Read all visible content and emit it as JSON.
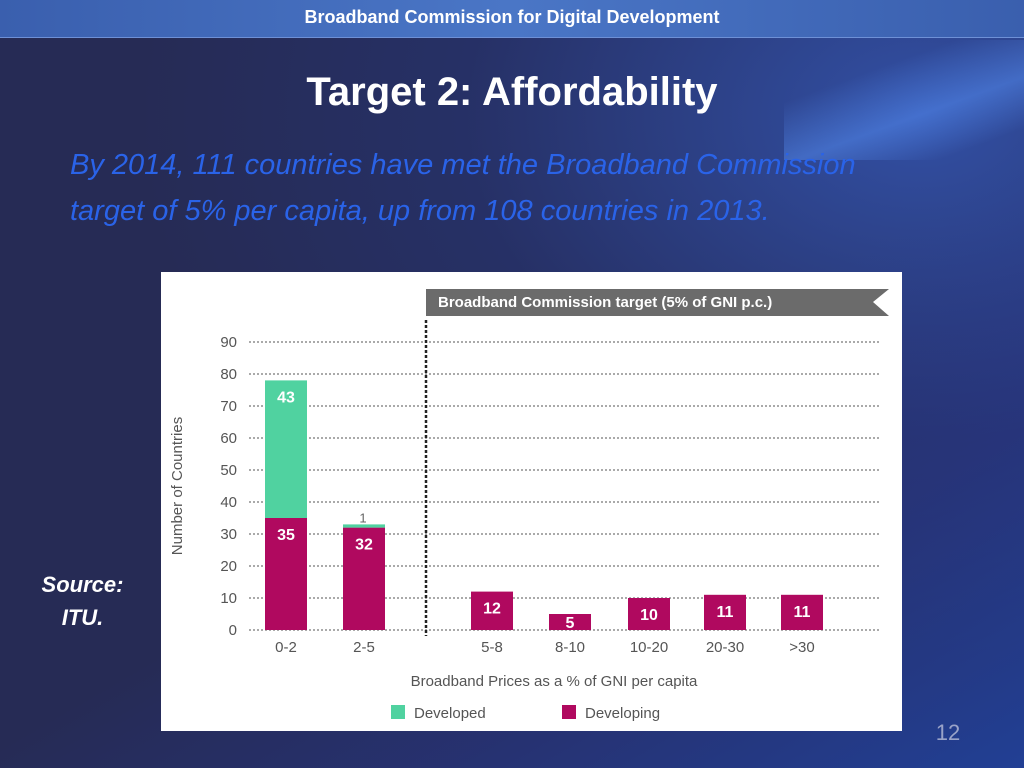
{
  "header": {
    "org_title": "Broadband Commission for Digital Development"
  },
  "slide": {
    "title": "Target 2: Affordability",
    "subtitle_line1": "By 2014, 111 countries have met the Broadband Commission",
    "subtitle_line2": "target of 5% per capita, up from 108 countries in 2013.",
    "source_line1": "Source:",
    "source_line2": "ITU.",
    "page_number": "12"
  },
  "colors": {
    "developed": "#50d2a0",
    "developing": "#b0095f",
    "background": "#262b55",
    "subtitle": "#2a63e8"
  },
  "chart_data": {
    "type": "bar",
    "stacked": true,
    "categories": [
      "0-2",
      "2-5",
      "5-8",
      "8-10",
      "10-20",
      "20-30",
      ">30"
    ],
    "series": [
      {
        "name": "Developing",
        "values": [
          35,
          32,
          12,
          5,
          10,
          11,
          11
        ],
        "color": "#b0095f"
      },
      {
        "name": "Developed",
        "values": [
          43,
          1,
          0,
          0,
          0,
          0,
          0
        ],
        "color": "#50d2a0"
      }
    ],
    "xlabel": "Broadband Prices as a % of GNI per capita",
    "ylabel": "Number of Countries",
    "ylim": [
      0,
      90
    ],
    "yticks": [
      0,
      10,
      20,
      30,
      40,
      50,
      60,
      70,
      80,
      90
    ],
    "grid": true,
    "legend_placement": "bottom",
    "target_annotation": "Broadband Commission target (5% of GNI p.c.)",
    "target_after_category": "2-5"
  }
}
